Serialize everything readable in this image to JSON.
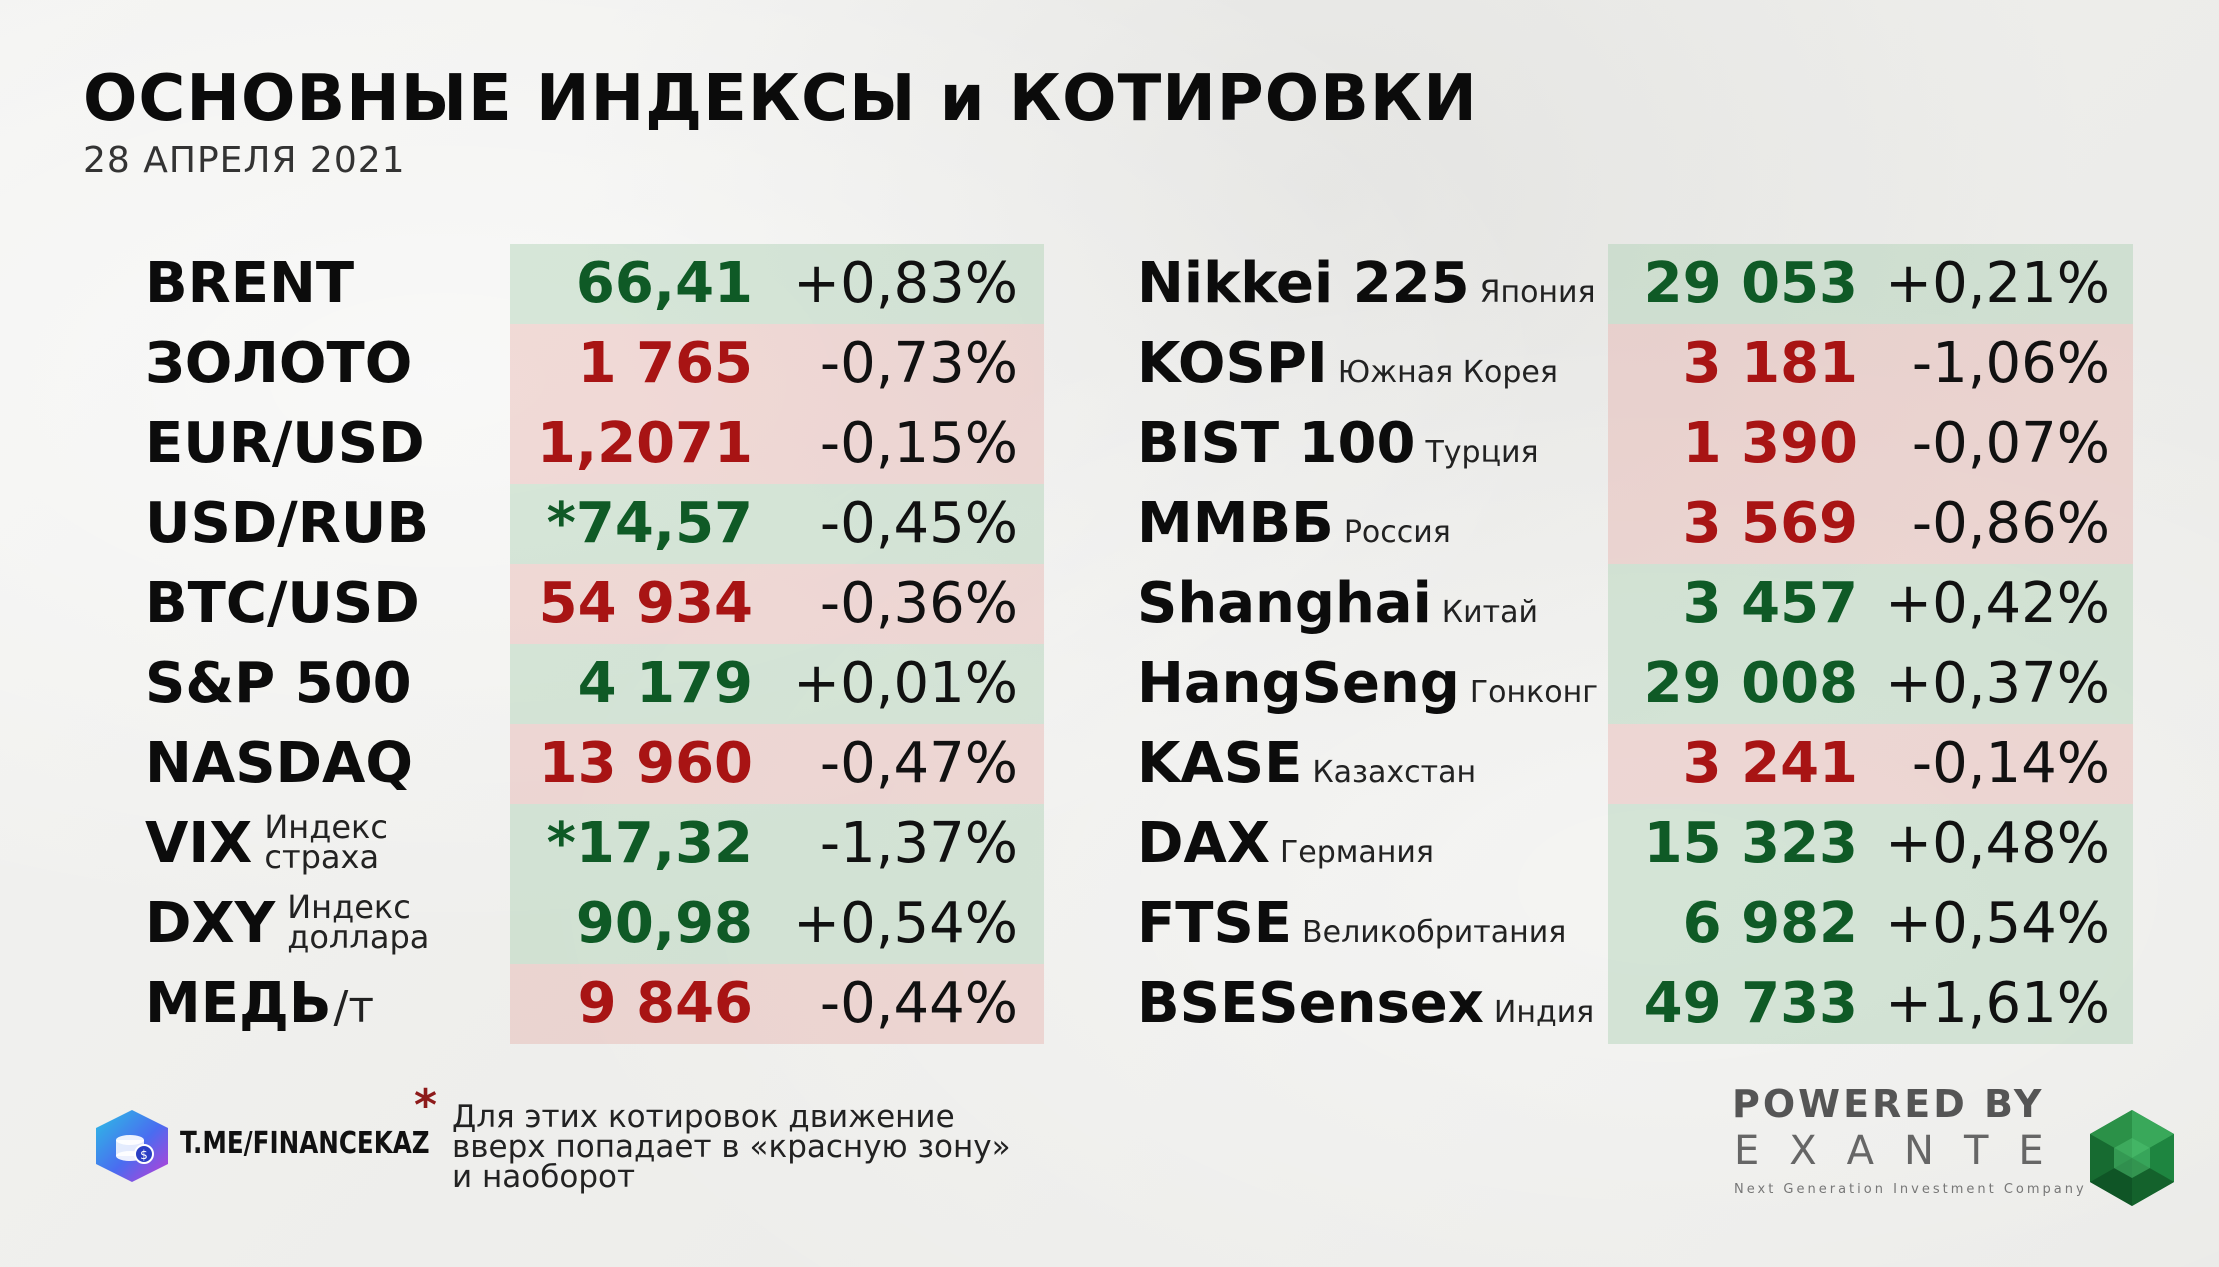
{
  "title": "ОСНОВНЫЕ ИНДЕКСЫ и КОТИРОВКИ",
  "date": "28 АПРЕЛЯ 2021",
  "left_rows": [
    {
      "name": "BRENT",
      "value": "66,41",
      "change": "+0,83%",
      "trend": "up"
    },
    {
      "name": "ЗОЛОТО",
      "value": "1 765",
      "change": "-0,73%",
      "trend": "down"
    },
    {
      "name": "EUR/USD",
      "value": "1,2071",
      "change": "-0,15%",
      "trend": "down"
    },
    {
      "name": "USD/RUB",
      "value": "*74,57",
      "change": "-0,45%",
      "trend": "up"
    },
    {
      "name": "BTC/USD",
      "value": "54 934",
      "change": "-0,36%",
      "trend": "down"
    },
    {
      "name": "S&P 500",
      "value": "4 179",
      "change": "+0,01%",
      "trend": "up"
    },
    {
      "name": "NASDAQ",
      "value": "13 960",
      "change": "-0,47%",
      "trend": "down"
    },
    {
      "name": "VIX",
      "sub1": "Индекс",
      "sub2": "страха",
      "value": "*17,32",
      "change": "-1,37%",
      "trend": "up"
    },
    {
      "name": "DXY",
      "sub1": "Индекс",
      "sub2": "доллара",
      "value": "90,98",
      "change": "+0,54%",
      "trend": "up"
    },
    {
      "name": "МЕДЬ",
      "unit": "/т",
      "value": "9 846",
      "change": "-0,44%",
      "trend": "down"
    }
  ],
  "right_rows": [
    {
      "name": "Nikkei 225",
      "sub": "Япония",
      "value": "29 053",
      "change": "+0,21%",
      "trend": "up"
    },
    {
      "name": "KOSPI",
      "sub": "Южная Корея",
      "value": "3 181",
      "change": "-1,06%",
      "trend": "down"
    },
    {
      "name": "BIST 100",
      "sub": "Турция",
      "value": "1 390",
      "change": "-0,07%",
      "trend": "down"
    },
    {
      "name": "ММВБ",
      "sub": "Россия",
      "value": "3 569",
      "change": "-0,86%",
      "trend": "down"
    },
    {
      "name": "Shanghai",
      "sub": "Китай",
      "value": "3 457",
      "change": "+0,42%",
      "trend": "up"
    },
    {
      "name": "HangSeng",
      "sub": "Гонконг",
      "value": "29 008",
      "change": "+0,37%",
      "trend": "up"
    },
    {
      "name": "KASE",
      "sub": "Казахстан",
      "value": "3 241",
      "change": "-0,14%",
      "trend": "down"
    },
    {
      "name": "DAX",
      "sub": "Германия",
      "value": "15 323",
      "change": "+0,48%",
      "trend": "up"
    },
    {
      "name": "FTSE",
      "sub": "Великобритания",
      "value": "6 982",
      "change": "+0,54%",
      "trend": "up"
    },
    {
      "name": "BSESensex",
      "sub": "Индия",
      "value": "49 733",
      "change": "+1,61%",
      "trend": "up"
    }
  ],
  "footer": {
    "channel": "T.ME/FINANCEKAZ",
    "asterisk": "*",
    "note": "Для этих котировок движение\nвверх попадает в «красную зону»\nи наоборот",
    "powered_by": "POWERED BY",
    "brand": "EXANTE",
    "brand_tagline": "Next Generation Investment Company"
  },
  "colors": {
    "up_text": "#0f5a26",
    "down_text": "#a81414",
    "up_bg": "#acd0b4",
    "down_bg": "#e4a8a4",
    "asterisk": "#8d1a1a"
  }
}
